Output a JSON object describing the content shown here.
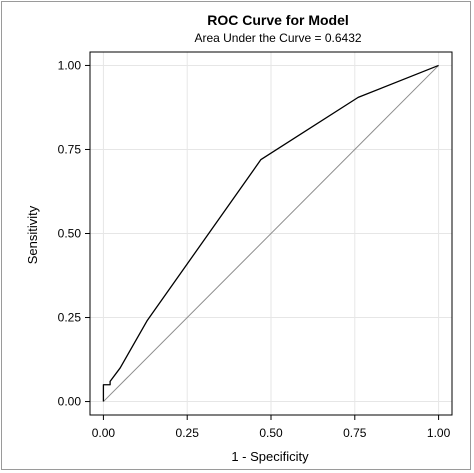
{
  "chart_data": {
    "type": "line",
    "title": "ROC Curve for Model",
    "subtitle": "Area Under the Curve = 0.6432",
    "xlabel": "1 - Specificity",
    "ylabel": "Sensitivity",
    "xlim": [
      -0.04,
      1.04
    ],
    "ylim": [
      -0.04,
      1.04
    ],
    "x_ticks": [
      0,
      0.25,
      0.5,
      0.75,
      1
    ],
    "x_tick_labels": [
      "0.00",
      "0.25",
      "0.50",
      "0.75",
      "1.00"
    ],
    "y_ticks": [
      0,
      0.25,
      0.5,
      0.75,
      1
    ],
    "y_tick_labels": [
      "0.00",
      "0.25",
      "0.50",
      "0.75",
      "1.00"
    ],
    "grid": true,
    "grid_color": "#e6e6e6",
    "line_color": "#000000",
    "reference_line_color": "#8c8c8c",
    "series": [
      {
        "x": [
          0.0,
          0.0,
          0.02,
          0.02,
          0.05,
          0.13,
          0.47,
          0.76,
          1.0
        ],
        "y": [
          0.0,
          0.05,
          0.05,
          0.06,
          0.1,
          0.24,
          0.72,
          0.905,
          1.0
        ]
      }
    ],
    "reference_line": {
      "x": [
        0,
        1
      ],
      "y": [
        0,
        1
      ]
    }
  }
}
